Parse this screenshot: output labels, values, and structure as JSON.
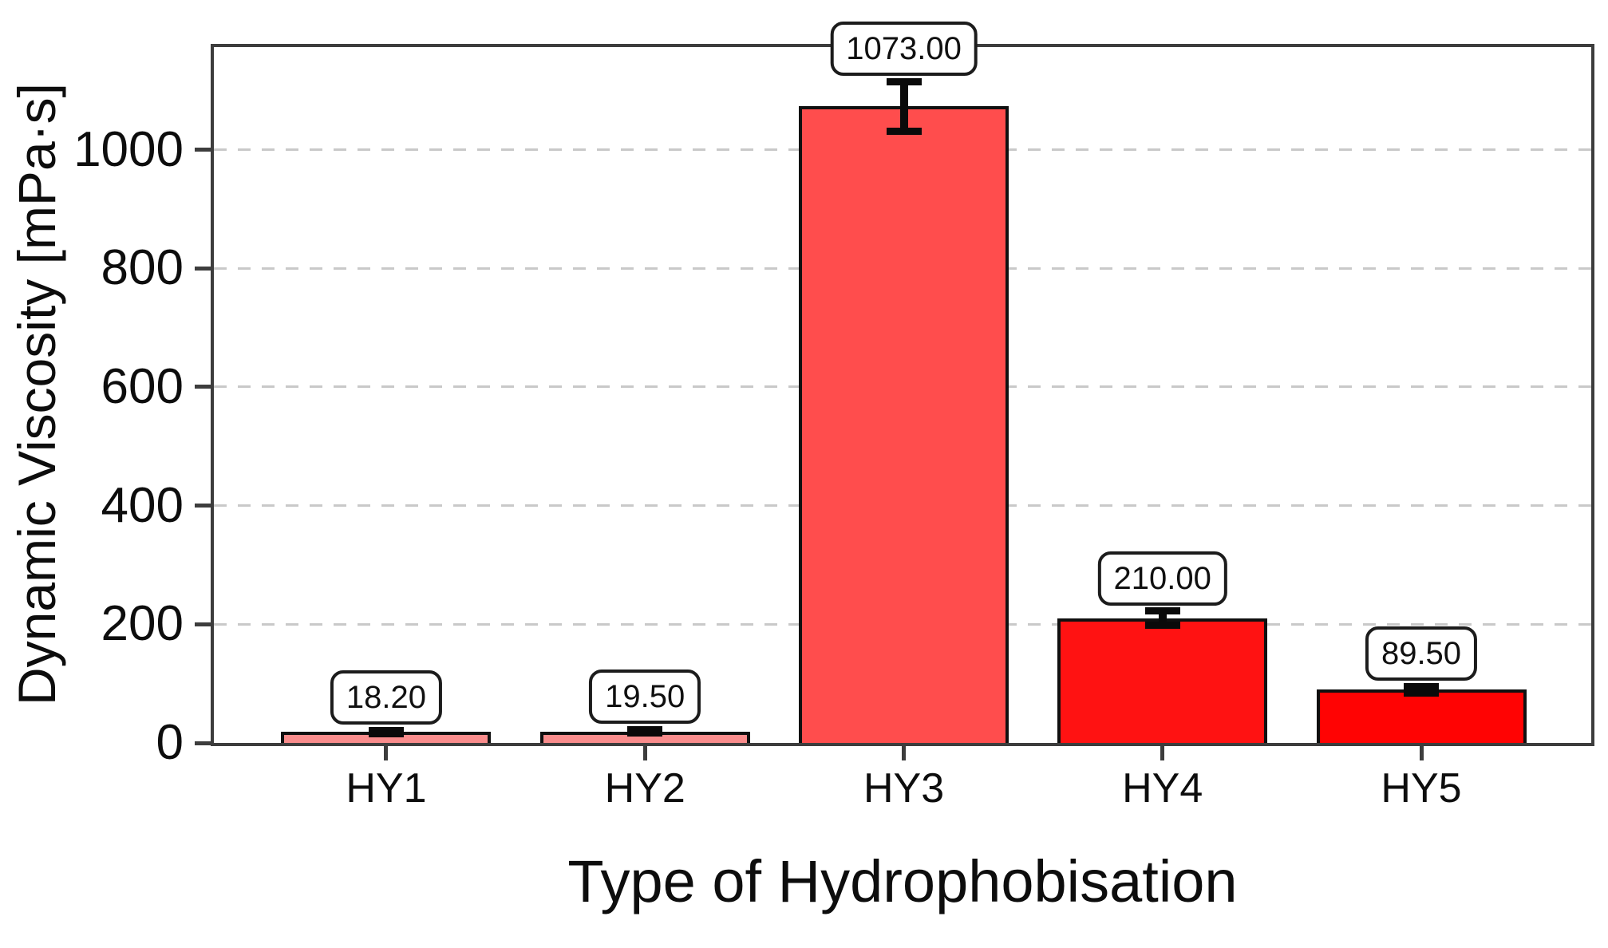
{
  "chart_data": {
    "type": "bar",
    "title": "",
    "categories": [
      "HY1",
      "HY2",
      "HY3",
      "HY4",
      "HY5"
    ],
    "values": [
      18.2,
      19.5,
      1073.0,
      210.0,
      89.5
    ],
    "value_labels": [
      "18.20",
      "19.50",
      "1073.00",
      "210.00",
      "89.50"
    ],
    "errors": [
      3,
      3,
      42,
      12,
      6
    ],
    "bar_colors": [
      "#f98c8c",
      "#f98c8c",
      "#ff4d4d",
      "#ff1212",
      "#ff0303"
    ],
    "xlabel": "Type of Hydrophobisation",
    "ylabel": "Dynamic Viscosity [mPa·s]",
    "ylim": [
      0,
      1173
    ],
    "yticks": [
      0,
      200,
      400,
      600,
      800,
      1000
    ],
    "grid": "horizontal dashed lines at y ticks above 0",
    "legend": "none",
    "annotations": "each bar labeled with its value in a rounded white box above the error bar"
  },
  "style": {
    "background": "#ffffff",
    "bar_edge_color": "#101010",
    "spine_color": "#3d3d3d",
    "grid_color": "#c9c9c9",
    "error_bar_color": "#0a0a0a",
    "value_box_bg": "#ffffff",
    "value_box_border": "#1c1c1c",
    "text_color": "#0d0d0d"
  }
}
